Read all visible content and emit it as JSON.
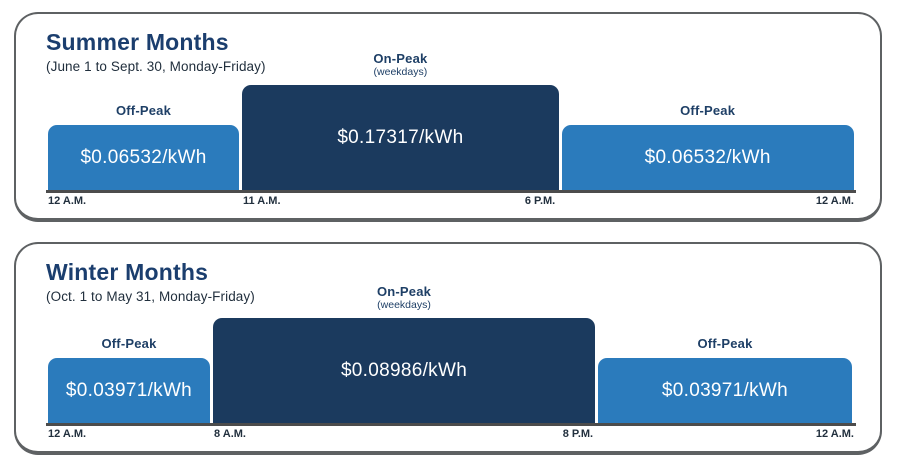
{
  "colors": {
    "off_peak_bar": "#2b7bbc",
    "on_peak_bar": "#1b3a5e",
    "title_navy": "#1b3e6e",
    "label_navy": "#1e3f66",
    "axis_line": "#4c4c4c",
    "card_border": "#5e6163"
  },
  "panels": [
    {
      "title": "Summer Months",
      "subtitle": "(June 1 to Sept. 30, Monday-Friday)",
      "bars": [
        {
          "label": "Off-Peak",
          "sublabel": "",
          "price": "$0.06532/kWh"
        },
        {
          "label": "On-Peak",
          "sublabel": "(weekdays)",
          "price": "$0.17317/kWh"
        },
        {
          "label": "Off-Peak",
          "sublabel": "",
          "price": "$0.06532/kWh"
        }
      ],
      "ticks": [
        "12 A.M.",
        "11 A.M.",
        "6 P.M.",
        "12 A.M."
      ]
    },
    {
      "title": "Winter Months",
      "subtitle": "(Oct. 1 to May 31, Monday-Friday)",
      "bars": [
        {
          "label": "Off-Peak",
          "sublabel": "",
          "price": "$0.03971/kWh"
        },
        {
          "label": "On-Peak",
          "sublabel": "(weekdays)",
          "price": "$0.08986/kWh"
        },
        {
          "label": "Off-Peak",
          "sublabel": "",
          "price": "$0.03971/kWh"
        }
      ],
      "ticks": [
        "12 A.M.",
        "8 A.M.",
        "8 P.M.",
        "12 A.M."
      ]
    }
  ],
  "chart_data": [
    {
      "type": "bar",
      "title": "Summer Months",
      "subtitle": "(June 1 to Sept. 30, Monday-Friday)",
      "x_unit": "time of day",
      "y_unit": "$/kWh",
      "segments": [
        {
          "period": "Off-Peak",
          "start": "12 A.M.",
          "end": "11 A.M.",
          "rate_usd_per_kwh": 0.06532
        },
        {
          "period": "On-Peak (weekdays)",
          "start": "11 A.M.",
          "end": "6 P.M.",
          "rate_usd_per_kwh": 0.17317
        },
        {
          "period": "Off-Peak",
          "start": "6 P.M.",
          "end": "12 A.M.",
          "rate_usd_per_kwh": 0.06532
        }
      ]
    },
    {
      "type": "bar",
      "title": "Winter Months",
      "subtitle": "(Oct. 1 to May 31, Monday-Friday)",
      "x_unit": "time of day",
      "y_unit": "$/kWh",
      "segments": [
        {
          "period": "Off-Peak",
          "start": "12 A.M.",
          "end": "8 A.M.",
          "rate_usd_per_kwh": 0.03971
        },
        {
          "period": "On-Peak (weekdays)",
          "start": "8 A.M.",
          "end": "8 P.M.",
          "rate_usd_per_kwh": 0.08986
        },
        {
          "period": "Off-Peak",
          "start": "8 P.M.",
          "end": "12 A.M.",
          "rate_usd_per_kwh": 0.03971
        }
      ]
    }
  ]
}
